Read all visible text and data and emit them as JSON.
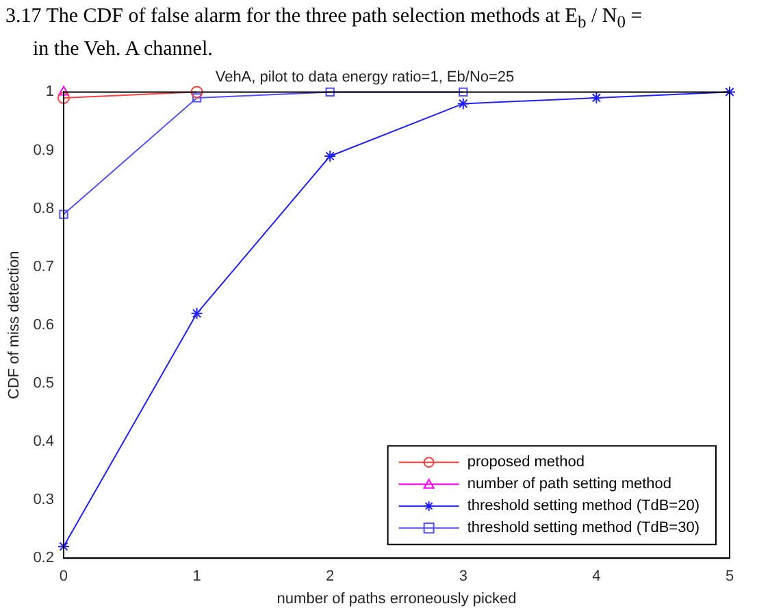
{
  "chart_data": {
    "type": "line",
    "title": "VehA, pilot to data energy ratio=1, Eb/No=25",
    "annotations": [
      "3.17 The CDF of false alarm for the three path selection methods at E$_{b}$ / N$_{0}$ =",
      "in the Veh. A channel."
    ],
    "xlabel": "number of paths erroneously picked",
    "ylabel": "CDF of miss detection",
    "xlim": [
      0,
      5
    ],
    "xticks": [
      0,
      1,
      2,
      3,
      4,
      5
    ],
    "ylim": [
      0.2,
      1
    ],
    "yticks": [
      0.2,
      0.3,
      0.4,
      0.5,
      0.6,
      0.7,
      0.8,
      0.9,
      1
    ],
    "grid": false,
    "legend": "bottom right",
    "line_style": "solid",
    "series": [
      {
        "name": "proposed method",
        "color": "#ff4040",
        "marker": "circle",
        "x": [
          0,
          1
        ],
        "values": [
          0.99,
          1.0
        ]
      },
      {
        "name": "number of path setting method",
        "color": "#ff00ff",
        "marker": "triangle",
        "x": [
          0
        ],
        "values": [
          1.0
        ]
      },
      {
        "name": "threshold setting method (TdB=20)",
        "color": "#2020ff",
        "marker": "cross",
        "x": [
          0,
          1,
          2,
          3,
          4,
          5
        ],
        "values": [
          0.22,
          0.62,
          0.89,
          0.98,
          0.99,
          1.0
        ]
      },
      {
        "name": "threshold setting method (TdB=30)",
        "color": "#5050ff",
        "marker": "square",
        "x": [
          0,
          1,
          2,
          3
        ],
        "values": [
          0.79,
          0.99,
          1.0,
          1.0
        ]
      }
    ]
  }
}
